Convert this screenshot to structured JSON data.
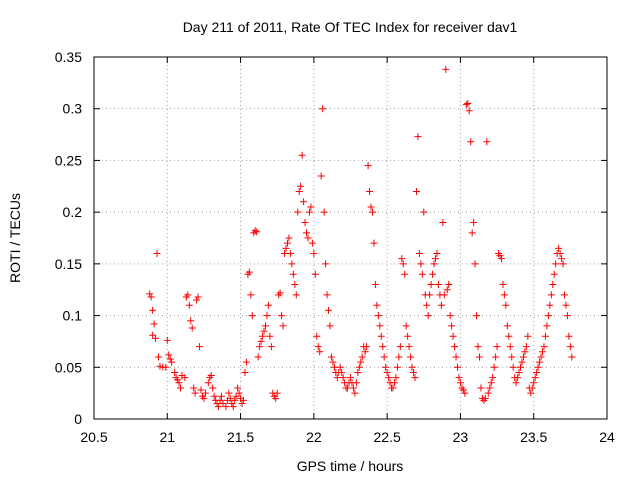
{
  "chart_data": {
    "type": "scatter",
    "title": "Day 211 of 2011, Rate Of TEC Index for receiver dav1",
    "xlabel": "GPS time / hours",
    "ylabel": "ROTI / TECUs",
    "xlim": [
      20.5,
      24
    ],
    "ylim": [
      0,
      0.35
    ],
    "x_ticks": [
      "20.5",
      "21",
      "21.5",
      "22",
      "22.5",
      "23",
      "23.5",
      "24"
    ],
    "y_ticks": [
      "0",
      "0.05",
      "0.1",
      "0.15",
      "0.2",
      "0.25",
      "0.3",
      "0.35"
    ],
    "grid": true,
    "marker": "plus",
    "color": "#ff0000",
    "series": [
      {
        "name": "dav1",
        "points": [
          [
            20.88,
            0.121
          ],
          [
            20.89,
            0.118
          ],
          [
            20.9,
            0.105
          ],
          [
            20.91,
            0.092
          ],
          [
            20.9,
            0.081
          ],
          [
            20.92,
            0.078
          ],
          [
            20.93,
            0.16
          ],
          [
            20.94,
            0.06
          ],
          [
            20.95,
            0.051
          ],
          [
            20.97,
            0.05
          ],
          [
            20.99,
            0.05
          ],
          [
            21.0,
            0.076
          ],
          [
            21.01,
            0.062
          ],
          [
            21.02,
            0.058
          ],
          [
            21.03,
            0.055
          ],
          [
            21.05,
            0.045
          ],
          [
            21.06,
            0.04
          ],
          [
            21.07,
            0.038
          ],
          [
            21.08,
            0.035
          ],
          [
            21.09,
            0.03
          ],
          [
            21.1,
            0.042
          ],
          [
            21.12,
            0.04
          ],
          [
            21.13,
            0.118
          ],
          [
            21.14,
            0.12
          ],
          [
            21.15,
            0.11
          ],
          [
            21.16,
            0.095
          ],
          [
            21.17,
            0.088
          ],
          [
            21.18,
            0.03
          ],
          [
            21.19,
            0.025
          ],
          [
            21.2,
            0.115
          ],
          [
            21.21,
            0.118
          ],
          [
            21.22,
            0.07
          ],
          [
            21.23,
            0.028
          ],
          [
            21.24,
            0.022
          ],
          [
            21.25,
            0.02
          ],
          [
            21.26,
            0.025
          ],
          [
            21.28,
            0.035
          ],
          [
            21.29,
            0.04
          ],
          [
            21.3,
            0.042
          ],
          [
            21.31,
            0.03
          ],
          [
            21.32,
            0.022
          ],
          [
            21.33,
            0.018
          ],
          [
            21.34,
            0.015
          ],
          [
            21.35,
            0.012
          ],
          [
            21.36,
            0.018
          ],
          [
            21.37,
            0.022
          ],
          [
            21.38,
            0.015
          ],
          [
            21.4,
            0.012
          ],
          [
            21.41,
            0.018
          ],
          [
            21.42,
            0.025
          ],
          [
            21.43,
            0.02
          ],
          [
            21.44,
            0.015
          ],
          [
            21.45,
            0.012
          ],
          [
            21.46,
            0.018
          ],
          [
            21.47,
            0.022
          ],
          [
            21.48,
            0.03
          ],
          [
            21.49,
            0.025
          ],
          [
            21.5,
            0.02
          ],
          [
            21.51,
            0.015
          ],
          [
            21.52,
            0.018
          ],
          [
            21.53,
            0.045
          ],
          [
            21.54,
            0.055
          ],
          [
            21.55,
            0.14
          ],
          [
            21.56,
            0.142
          ],
          [
            21.57,
            0.12
          ],
          [
            21.58,
            0.1
          ],
          [
            21.59,
            0.18
          ],
          [
            21.6,
            0.182
          ],
          [
            21.61,
            0.181
          ],
          [
            21.62,
            0.06
          ],
          [
            21.63,
            0.07
          ],
          [
            21.64,
            0.075
          ],
          [
            21.65,
            0.08
          ],
          [
            21.66,
            0.085
          ],
          [
            21.67,
            0.09
          ],
          [
            21.68,
            0.1
          ],
          [
            21.69,
            0.11
          ],
          [
            21.7,
            0.08
          ],
          [
            21.71,
            0.07
          ],
          [
            21.72,
            0.025
          ],
          [
            21.73,
            0.022
          ],
          [
            21.74,
            0.02
          ],
          [
            21.75,
            0.025
          ],
          [
            21.76,
            0.12
          ],
          [
            21.77,
            0.122
          ],
          [
            21.78,
            0.1
          ],
          [
            21.79,
            0.09
          ],
          [
            21.8,
            0.16
          ],
          [
            21.81,
            0.165
          ],
          [
            21.82,
            0.17
          ],
          [
            21.83,
            0.175
          ],
          [
            21.84,
            0.16
          ],
          [
            21.85,
            0.15
          ],
          [
            21.86,
            0.14
          ],
          [
            21.87,
            0.13
          ],
          [
            21.88,
            0.12
          ],
          [
            21.89,
            0.2
          ],
          [
            21.9,
            0.22
          ],
          [
            21.91,
            0.225
          ],
          [
            21.92,
            0.255
          ],
          [
            21.93,
            0.21
          ],
          [
            21.94,
            0.19
          ],
          [
            21.95,
            0.18
          ],
          [
            21.96,
            0.175
          ],
          [
            21.97,
            0.2
          ],
          [
            21.98,
            0.205
          ],
          [
            21.99,
            0.17
          ],
          [
            22.0,
            0.16
          ],
          [
            22.01,
            0.14
          ],
          [
            22.02,
            0.08
          ],
          [
            22.03,
            0.07
          ],
          [
            22.04,
            0.065
          ],
          [
            22.05,
            0.235
          ],
          [
            22.06,
            0.3
          ],
          [
            22.07,
            0.2
          ],
          [
            22.08,
            0.15
          ],
          [
            22.09,
            0.12
          ],
          [
            22.1,
            0.105
          ],
          [
            22.11,
            0.09
          ],
          [
            22.12,
            0.06
          ],
          [
            22.13,
            0.055
          ],
          [
            22.14,
            0.05
          ],
          [
            22.15,
            0.045
          ],
          [
            22.16,
            0.04
          ],
          [
            22.17,
            0.045
          ],
          [
            22.18,
            0.05
          ],
          [
            22.19,
            0.045
          ],
          [
            22.2,
            0.04
          ],
          [
            22.21,
            0.035
          ],
          [
            22.22,
            0.03
          ],
          [
            22.23,
            0.03
          ],
          [
            22.24,
            0.035
          ],
          [
            22.25,
            0.04
          ],
          [
            22.26,
            0.035
          ],
          [
            22.27,
            0.03
          ],
          [
            22.28,
            0.025
          ],
          [
            22.29,
            0.035
          ],
          [
            22.3,
            0.045
          ],
          [
            22.31,
            0.05
          ],
          [
            22.32,
            0.055
          ],
          [
            22.33,
            0.06
          ],
          [
            22.34,
            0.07
          ],
          [
            22.35,
            0.065
          ],
          [
            22.36,
            0.07
          ],
          [
            22.37,
            0.245
          ],
          [
            22.38,
            0.22
          ],
          [
            22.39,
            0.205
          ],
          [
            22.4,
            0.2
          ],
          [
            22.41,
            0.17
          ],
          [
            22.42,
            0.13
          ],
          [
            22.43,
            0.11
          ],
          [
            22.44,
            0.1
          ],
          [
            22.45,
            0.09
          ],
          [
            22.46,
            0.08
          ],
          [
            22.47,
            0.07
          ],
          [
            22.48,
            0.06
          ],
          [
            22.49,
            0.05
          ],
          [
            22.5,
            0.045
          ],
          [
            22.51,
            0.04
          ],
          [
            22.52,
            0.035
          ],
          [
            22.53,
            0.03
          ],
          [
            22.54,
            0.03
          ],
          [
            22.55,
            0.035
          ],
          [
            22.56,
            0.04
          ],
          [
            22.57,
            0.05
          ],
          [
            22.58,
            0.06
          ],
          [
            22.59,
            0.07
          ],
          [
            22.6,
            0.155
          ],
          [
            22.61,
            0.15
          ],
          [
            22.62,
            0.14
          ],
          [
            22.63,
            0.09
          ],
          [
            22.64,
            0.08
          ],
          [
            22.65,
            0.07
          ],
          [
            22.66,
            0.06
          ],
          [
            22.67,
            0.05
          ],
          [
            22.68,
            0.045
          ],
          [
            22.69,
            0.04
          ],
          [
            22.7,
            0.22
          ],
          [
            22.71,
            0.273
          ],
          [
            22.72,
            0.16
          ],
          [
            22.73,
            0.15
          ],
          [
            22.74,
            0.14
          ],
          [
            22.75,
            0.2
          ],
          [
            22.76,
            0.12
          ],
          [
            22.77,
            0.11
          ],
          [
            22.78,
            0.1
          ],
          [
            22.79,
            0.12
          ],
          [
            22.8,
            0.13
          ],
          [
            22.81,
            0.14
          ],
          [
            22.82,
            0.15
          ],
          [
            22.83,
            0.155
          ],
          [
            22.84,
            0.16
          ],
          [
            22.85,
            0.13
          ],
          [
            22.86,
            0.12
          ],
          [
            22.87,
            0.11
          ],
          [
            22.88,
            0.19
          ],
          [
            22.89,
            0.12
          ],
          [
            22.9,
            0.338
          ],
          [
            22.91,
            0.125
          ],
          [
            22.92,
            0.13
          ],
          [
            22.93,
            0.1
          ],
          [
            22.94,
            0.09
          ],
          [
            22.95,
            0.08
          ],
          [
            22.96,
            0.07
          ],
          [
            22.97,
            0.06
          ],
          [
            22.98,
            0.05
          ],
          [
            22.99,
            0.04
          ],
          [
            23.0,
            0.035
          ],
          [
            23.01,
            0.03
          ],
          [
            23.02,
            0.028
          ],
          [
            23.03,
            0.025
          ],
          [
            23.04,
            0.304
          ],
          [
            23.05,
            0.305
          ],
          [
            23.06,
            0.298
          ],
          [
            23.07,
            0.268
          ],
          [
            23.08,
            0.18
          ],
          [
            23.09,
            0.19
          ],
          [
            23.1,
            0.15
          ],
          [
            23.11,
            0.1
          ],
          [
            23.12,
            0.07
          ],
          [
            23.13,
            0.06
          ],
          [
            23.14,
            0.03
          ],
          [
            23.15,
            0.02
          ],
          [
            23.16,
            0.018
          ],
          [
            23.17,
            0.02
          ],
          [
            23.18,
            0.268
          ],
          [
            23.19,
            0.025
          ],
          [
            23.2,
            0.03
          ],
          [
            23.21,
            0.035
          ],
          [
            23.22,
            0.04
          ],
          [
            23.23,
            0.05
          ],
          [
            23.24,
            0.06
          ],
          [
            23.25,
            0.07
          ],
          [
            23.26,
            0.16
          ],
          [
            23.27,
            0.158
          ],
          [
            23.28,
            0.155
          ],
          [
            23.29,
            0.13
          ],
          [
            23.3,
            0.12
          ],
          [
            23.31,
            0.11
          ],
          [
            23.32,
            0.09
          ],
          [
            23.33,
            0.08
          ],
          [
            23.34,
            0.07
          ],
          [
            23.35,
            0.06
          ],
          [
            23.36,
            0.05
          ],
          [
            23.37,
            0.04
          ],
          [
            23.38,
            0.035
          ],
          [
            23.39,
            0.04
          ],
          [
            23.4,
            0.045
          ],
          [
            23.41,
            0.05
          ],
          [
            23.42,
            0.055
          ],
          [
            23.43,
            0.06
          ],
          [
            23.44,
            0.065
          ],
          [
            23.45,
            0.07
          ],
          [
            23.46,
            0.08
          ],
          [
            23.47,
            0.03
          ],
          [
            23.48,
            0.025
          ],
          [
            23.49,
            0.03
          ],
          [
            23.5,
            0.035
          ],
          [
            23.51,
            0.04
          ],
          [
            23.52,
            0.045
          ],
          [
            23.53,
            0.05
          ],
          [
            23.54,
            0.055
          ],
          [
            23.55,
            0.06
          ],
          [
            23.56,
            0.065
          ],
          [
            23.57,
            0.07
          ],
          [
            23.58,
            0.08
          ],
          [
            23.59,
            0.09
          ],
          [
            23.6,
            0.1
          ],
          [
            23.61,
            0.11
          ],
          [
            23.62,
            0.12
          ],
          [
            23.63,
            0.13
          ],
          [
            23.64,
            0.14
          ],
          [
            23.65,
            0.15
          ],
          [
            23.66,
            0.16
          ],
          [
            23.67,
            0.165
          ],
          [
            23.68,
            0.16
          ],
          [
            23.69,
            0.155
          ],
          [
            23.7,
            0.15
          ],
          [
            23.71,
            0.12
          ],
          [
            23.72,
            0.11
          ],
          [
            23.73,
            0.1
          ],
          [
            23.74,
            0.08
          ],
          [
            23.75,
            0.07
          ],
          [
            23.76,
            0.06
          ]
        ]
      }
    ]
  }
}
